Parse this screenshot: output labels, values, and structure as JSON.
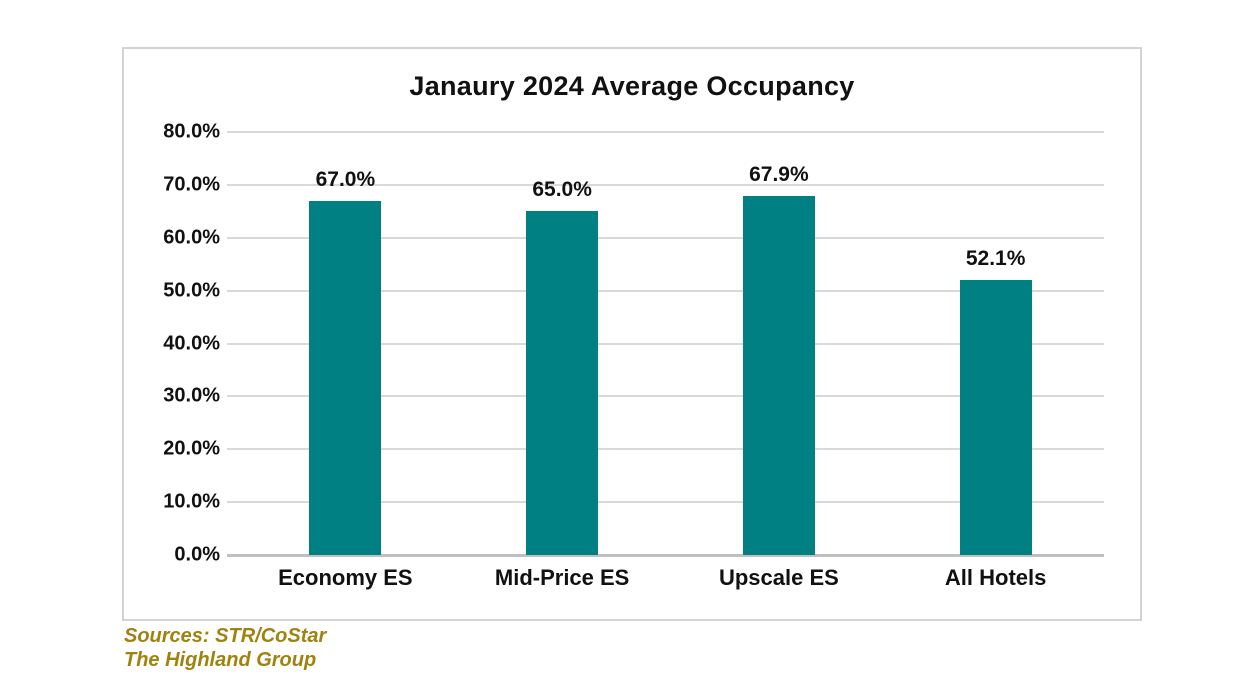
{
  "chart_data": {
    "type": "bar",
    "title": "Janaury 2024 Average Occupancy",
    "categories": [
      "Economy ES",
      "Mid-Price ES",
      "Upscale ES",
      "All Hotels"
    ],
    "values": [
      67.0,
      65.0,
      67.9,
      52.1
    ],
    "data_labels": [
      "67.0%",
      "65.0%",
      "67.9%",
      "52.1%"
    ],
    "xlabel": "",
    "ylabel": "",
    "ylim": [
      0,
      80
    ],
    "ytick_step": 10,
    "ytick_labels": [
      "80.0%",
      "70.0%",
      "60.0%",
      "50.0%",
      "40.0%",
      "30.0%",
      "20.0%",
      "10.0%",
      "0.0%"
    ],
    "grid": true,
    "legend": false,
    "colors": {
      "bar": "#008083",
      "gridline": "#d9d9d9",
      "axis_line": "#c0c0c0",
      "chart_border": "#d3d3d3",
      "text": "#111111",
      "source_text": "#a0820f"
    },
    "source_lines": [
      "Sources: STR/CoStar",
      "The Highland Group"
    ]
  }
}
